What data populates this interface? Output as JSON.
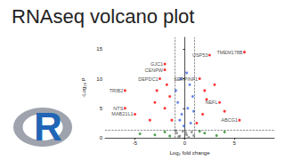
{
  "chart_data": {
    "type": "scatter",
    "title": "RNAseq volcano plot",
    "logo": "R",
    "x_label": "Log₂ fold change",
    "y_label": "-Log₁₀ P",
    "xlim": [
      -8,
      9
    ],
    "xticks": [
      -5,
      0,
      5
    ],
    "ylim": [
      0,
      17
    ],
    "yticks": [
      0,
      5,
      10,
      15
    ],
    "grid": false,
    "vlines": [
      -1,
      1
    ],
    "hlines": [
      1.3
    ],
    "series": [
      {
        "color": "#808080",
        "x": [
          -0.5,
          0.2,
          0.7,
          -0.8,
          0.4,
          -0.2,
          0.9,
          -0.6,
          0.1,
          -0.9
        ],
        "y": [
          0.3,
          0.5,
          1,
          0.8,
          0.1,
          1.1,
          0.4,
          0.2,
          0.9,
          1.2
        ]
      },
      {
        "color": "#228b22",
        "x": [
          -3,
          -2,
          -1.5,
          2,
          3.2,
          1.5,
          -4.5,
          4
        ],
        "y": [
          0.5,
          1,
          0.3,
          0.8,
          0.4,
          1.1,
          0.7,
          1
        ]
      },
      {
        "color": "#4169e1",
        "x": [
          -0.5,
          0.3,
          0.8,
          -0.7,
          0.5,
          -0.3,
          0.6,
          -0.9,
          0.2,
          -0.1,
          0.9,
          -0.4
        ],
        "y": [
          3,
          5,
          7,
          6,
          9,
          4,
          2.5,
          8,
          11,
          2,
          4.5,
          10
        ]
      },
      {
        "color": "#ff0000",
        "x": [
          -2,
          -2,
          -2.5,
          2.5,
          6,
          1.5,
          -6,
          3.5,
          5.5,
          -6,
          -5,
          -1.5,
          -3,
          -2,
          2,
          3,
          1.8,
          -1.3,
          1.2,
          4,
          -3.5,
          -1.8,
          2.2,
          -2.8
        ],
        "y": [
          12.5,
          11.5,
          10,
          14,
          14.5,
          10,
          8,
          6,
          3,
          5,
          4,
          7,
          6,
          5,
          8,
          9,
          4,
          3,
          2.5,
          4.5,
          3,
          9,
          6.5,
          8
        ]
      }
    ],
    "annotations": [
      {
        "text": "USP53",
        "x": 2.5,
        "y": 14
      },
      {
        "text": "TMEM178B",
        "x": 6,
        "y": 14.5
      },
      {
        "text": "GJC1",
        "x": -2,
        "y": 12.5
      },
      {
        "text": "CENPW",
        "x": -2,
        "y": 11.5
      },
      {
        "text": "DEPDC1",
        "x": -2.5,
        "y": 10
      },
      {
        "text": "SERPINF1",
        "x": 1.5,
        "y": 10
      },
      {
        "text": "TRIB2",
        "x": -6,
        "y": 8
      },
      {
        "text": "NEFL",
        "x": 3.5,
        "y": 6
      },
      {
        "text": "NTS",
        "x": -6,
        "y": 5
      },
      {
        "text": "MAB21L1",
        "x": -5,
        "y": 4
      },
      {
        "text": "ABCG1",
        "x": 5.5,
        "y": 3
      }
    ]
  }
}
